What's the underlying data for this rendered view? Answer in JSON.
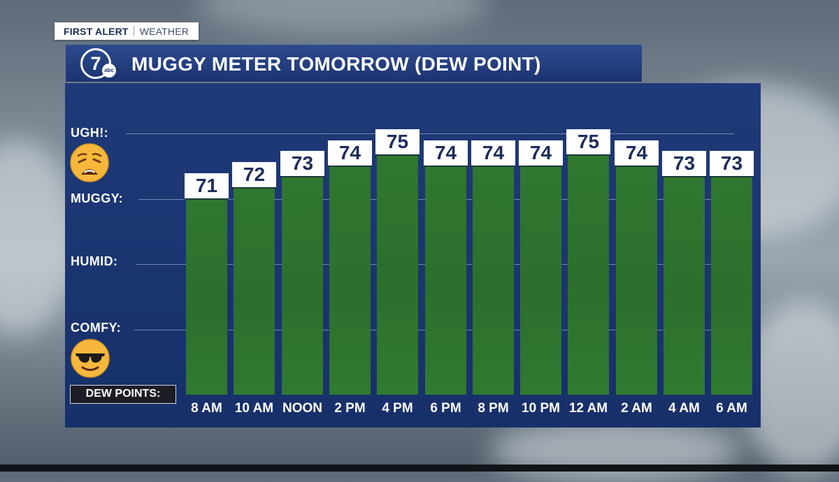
{
  "brand": {
    "first_alert": "FIRST ALERT",
    "weather": "WEATHER"
  },
  "title_bar": {
    "title": "MUGGY METER TOMORROW (DEW POINT)",
    "logo": {
      "numeral": "7",
      "network": "abc"
    }
  },
  "levels": [
    {
      "id": "ugh",
      "label": "UGH!:",
      "dew_point": 77,
      "emoji": "weary-face-icon"
    },
    {
      "id": "muggy",
      "label": "MUGGY:",
      "dew_point": 71
    },
    {
      "id": "humid",
      "label": "HUMID:",
      "dew_point": 65
    },
    {
      "id": "comfy",
      "label": "COMFY:",
      "dew_point": 59,
      "emoji": "sunglasses-face-icon"
    }
  ],
  "dew_points_label": "DEW POINTS:",
  "colors": {
    "panel": "#17306a",
    "title_bar": "#1c3371",
    "bar": "#2c6f2d",
    "value_box": "#ffffff",
    "value_text": "#1c2c5e"
  },
  "chart_data": {
    "type": "bar",
    "title": "MUGGY METER TOMORROW (DEW POINT)",
    "categories": [
      "8 AM",
      "10 AM",
      "NOON",
      "2 PM",
      "4 PM",
      "6 PM",
      "8 PM",
      "10 PM",
      "12 AM",
      "2 AM",
      "4 AM",
      "6 AM"
    ],
    "values": [
      71,
      72,
      73,
      74,
      75,
      74,
      74,
      74,
      75,
      74,
      73,
      73
    ],
    "ylim": [
      53,
      77
    ],
    "grid": true,
    "legend": "none"
  }
}
